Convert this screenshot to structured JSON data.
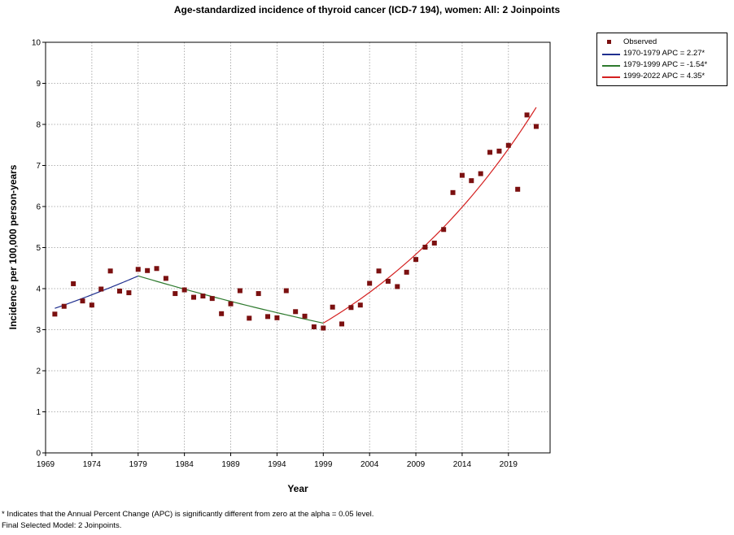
{
  "chart_data": {
    "type": "scatter",
    "title": "Age-standardized incidence of thyroid cancer (ICD-7 194), women: All: 2 Joinpoints",
    "xlabel": "Year",
    "ylabel": "Incidence per 100,000 person-years",
    "xlim": [
      1969,
      2023.5
    ],
    "ylim": [
      0,
      10
    ],
    "x_ticks": [
      1969,
      1974,
      1979,
      1984,
      1989,
      1994,
      1999,
      2004,
      2009,
      2014,
      2019
    ],
    "y_ticks": [
      0,
      1,
      2,
      3,
      4,
      5,
      6,
      7,
      8,
      9,
      10
    ],
    "grid": true,
    "legend_position": "top-right, outside plot",
    "observed": {
      "name": "Observed",
      "color": "#7b1010",
      "x": [
        1970,
        1971,
        1972,
        1973,
        1974,
        1975,
        1976,
        1977,
        1978,
        1979,
        1980,
        1981,
        1982,
        1983,
        1984,
        1985,
        1986,
        1987,
        1988,
        1989,
        1990,
        1991,
        1992,
        1993,
        1994,
        1995,
        1996,
        1997,
        1998,
        1999,
        2000,
        2001,
        2002,
        2003,
        2004,
        2005,
        2006,
        2007,
        2008,
        2009,
        2010,
        2011,
        2012,
        2013,
        2014,
        2015,
        2016,
        2017,
        2018,
        2019,
        2020,
        2021,
        2022
      ],
      "y": [
        3.38,
        3.57,
        4.12,
        3.7,
        3.6,
        3.99,
        4.43,
        3.94,
        3.9,
        4.47,
        4.44,
        4.49,
        4.25,
        3.88,
        3.97,
        3.79,
        3.82,
        3.76,
        3.39,
        3.63,
        3.95,
        3.28,
        3.88,
        3.32,
        3.29,
        3.95,
        3.44,
        3.33,
        3.07,
        3.04,
        3.55,
        3.14,
        3.54,
        3.6,
        4.13,
        4.43,
        4.18,
        4.05,
        4.4,
        4.71,
        5.01,
        5.11,
        5.44,
        6.34,
        6.76,
        6.63,
        6.8,
        7.32,
        7.35,
        7.49,
        6.42,
        8.23,
        7.95
      ]
    },
    "segments": [
      {
        "name": "1970-1979 APC =  2.27*",
        "color": "#1f2f8f",
        "start": 1970,
        "end": 1979,
        "y_start": 3.52,
        "apc": 2.27
      },
      {
        "name": "1979-1999 APC = -1.54*",
        "color": "#2e7a2e",
        "start": 1979,
        "end": 1999,
        "y_start": 4.31,
        "apc": -1.54
      },
      {
        "name": "1999-2022 APC =  4.35*",
        "color": "#d42020",
        "start": 1999,
        "end": 2022,
        "y_start": 3.16,
        "apc": 4.35
      }
    ]
  },
  "legend": {
    "observed_label": "Observed",
    "seg1_label": "1970-1979 APC  =  2.27*",
    "seg2_label": "1979-1999 APC  =  -1.54*",
    "seg3_label": "1999-2022 APC  =  4.35*"
  },
  "footnotes": {
    "line1": "* Indicates that the Annual Percent Change (APC) is significantly different from zero at the alpha = 0.05 level.",
    "line2": "Final Selected Model: 2 Joinpoints."
  }
}
